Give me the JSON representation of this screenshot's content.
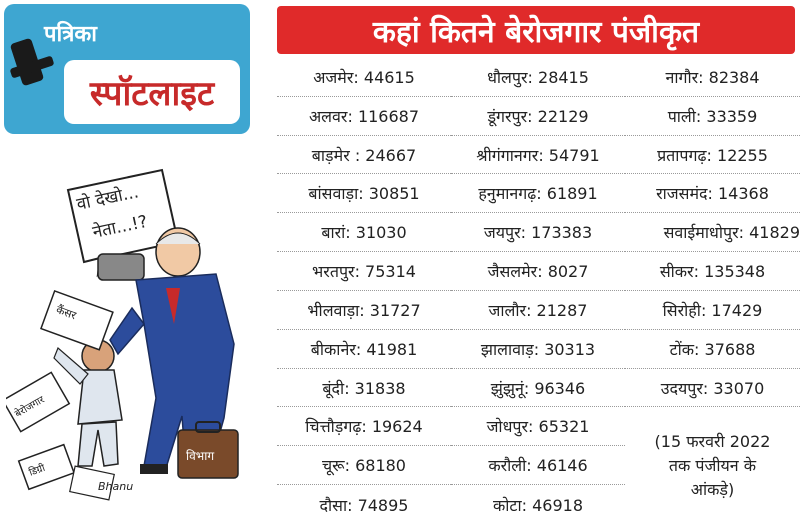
{
  "brand": "पत्रिका",
  "spotlight_title": "स्पॉटलाइट",
  "title": "कहां कितने बेरोजगार पंजीकृत",
  "cartoon": {
    "speech": [
      "वो देखो...",
      "नेता...!?"
    ],
    "paper1": "कैंसर",
    "paper2": "बेरोजगार",
    "paper3": "डिग्री",
    "bag": "विभाग",
    "signature": "Bhanu"
  },
  "columns": [
    [
      {
        "text": "अजमेर: 44615"
      },
      {
        "text": "अलवर: 116687"
      },
      {
        "text": "बाड़मेर : 24667"
      },
      {
        "text": "बांसवाड़ा: 30851"
      },
      {
        "text": "बारां: 31030"
      },
      {
        "text": "भरतपुर: 75314"
      },
      {
        "text": "भीलवाड़ा: 31727"
      },
      {
        "text": "बीकानेर: 41981"
      },
      {
        "text": "बूंदी: 31838"
      },
      {
        "text": "चित्तौड़गढ़: 19624"
      },
      {
        "text": "चूरू: 68180"
      },
      {
        "text": "दौसा: 74895"
      }
    ],
    [
      {
        "text": "धौलपुर: 28415"
      },
      {
        "text": "डूंगरपुर: 22129"
      },
      {
        "text": "श्रीगंगानगर: 54791"
      },
      {
        "text": "हनुमानगढ़: 61891"
      },
      {
        "text": "जयपुर: 173383"
      },
      {
        "text": "जैसलमेर: 8027"
      },
      {
        "text": "जालौर: 21287"
      },
      {
        "text": "झालावाड़: 30313"
      },
      {
        "text": "झुंझुनूं: 96346"
      },
      {
        "text": "जोधपुर: 65321"
      },
      {
        "text": "करौली: 46146"
      },
      {
        "text": "कोटा: 46918"
      }
    ],
    [
      {
        "text": "नागौर: 82384"
      },
      {
        "text": "पाली: 33359"
      },
      {
        "text": "प्रतापगढ़: 12255"
      },
      {
        "text": "राजसमंद: 14368"
      },
      {
        "text": "सवाईमाधोपुर: 41829"
      },
      {
        "text": "सीकर: 135348"
      },
      {
        "text": "सिरोही: 17429"
      },
      {
        "text": "टोंक: 37688"
      },
      {
        "text": "उदयपुर: 33070"
      }
    ]
  ],
  "note": {
    "line1": "(15 फरवरी 2022",
    "line2": "तक पंजीयन के",
    "line3": "आंकड़े)"
  }
}
